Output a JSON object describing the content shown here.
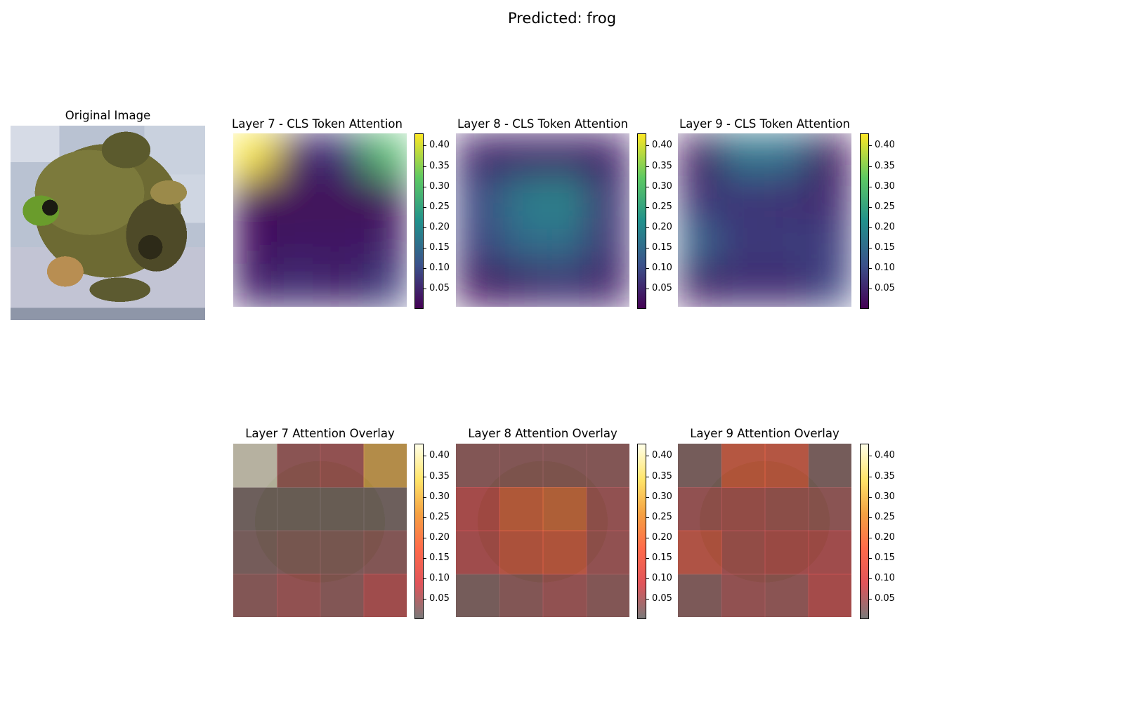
{
  "figure": {
    "suptitle": "Predicted: frog"
  },
  "panels": {
    "original_title": "Original Image",
    "attention_titles": [
      "Layer 7 - CLS Token Attention",
      "Layer 8 - CLS Token Attention",
      "Layer 9 - CLS Token Attention"
    ],
    "overlay_titles": [
      "Layer 7 Attention Overlay",
      "Layer 8 Attention Overlay",
      "Layer 9 Attention Overlay"
    ]
  },
  "colors": {
    "viridis": [
      "#440154",
      "#3b528b",
      "#21918c",
      "#5ec962",
      "#fde725"
    ],
    "hot_overlay": [
      "#7a7a7a",
      "#e0545a",
      "#ff6a4a",
      "#f5a142",
      "#ffe56a",
      "#ffffe8"
    ]
  },
  "chart_data": [
    {
      "type": "heatmap",
      "title": "Layer 7 - CLS Token Attention",
      "grid": "4x4 patches (bicubic upsampled)",
      "values": [
        [
          0.43,
          0.05,
          0.06,
          0.3
        ],
        [
          0.01,
          0.01,
          0.01,
          0.01
        ],
        [
          0.02,
          0.03,
          0.03,
          0.04
        ],
        [
          0.04,
          0.06,
          0.04,
          0.08
        ]
      ],
      "colorbar": {
        "cmap": "viridis",
        "ticks": [
          0.4,
          0.35,
          0.3,
          0.25,
          0.2,
          0.15,
          0.1,
          0.05
        ],
        "range": [
          0.0,
          0.43
        ]
      }
    },
    {
      "type": "heatmap",
      "title": "Layer 8 - CLS Token Attention",
      "grid": "4x4 patches (bicubic upsampled)",
      "values": [
        [
          0.04,
          0.04,
          0.04,
          0.04
        ],
        [
          0.09,
          0.18,
          0.2,
          0.06
        ],
        [
          0.08,
          0.15,
          0.16,
          0.06
        ],
        [
          0.02,
          0.04,
          0.06,
          0.04
        ]
      ],
      "colorbar": {
        "cmap": "viridis",
        "ticks": [
          0.4,
          0.35,
          0.3,
          0.25,
          0.2,
          0.15,
          0.1,
          0.05
        ],
        "range": [
          0.0,
          0.43
        ]
      }
    },
    {
      "type": "heatmap",
      "title": "Layer 9 - CLS Token Attention",
      "grid": "4x4 patches (bicubic upsampled)",
      "values": [
        [
          0.02,
          0.17,
          0.16,
          0.02
        ],
        [
          0.06,
          0.07,
          0.06,
          0.05
        ],
        [
          0.14,
          0.07,
          0.08,
          0.08
        ],
        [
          0.03,
          0.06,
          0.05,
          0.09
        ]
      ],
      "colorbar": {
        "cmap": "viridis",
        "ticks": [
          0.4,
          0.35,
          0.3,
          0.25,
          0.2,
          0.15,
          0.1,
          0.05
        ],
        "range": [
          0.0,
          0.43
        ]
      }
    },
    {
      "type": "heatmap",
      "title": "Layer 7 Attention Overlay",
      "grid": "4x4 patches (nearest, overlaid on image)",
      "values": [
        [
          0.43,
          0.05,
          0.06,
          0.3
        ],
        [
          0.01,
          0.01,
          0.01,
          0.01
        ],
        [
          0.02,
          0.03,
          0.03,
          0.04
        ],
        [
          0.04,
          0.06,
          0.04,
          0.08
        ]
      ],
      "colorbar": {
        "cmap": "hot",
        "ticks": [
          0.4,
          0.35,
          0.3,
          0.25,
          0.2,
          0.15,
          0.1,
          0.05
        ],
        "range": [
          0.0,
          0.43
        ]
      }
    },
    {
      "type": "heatmap",
      "title": "Layer 8 Attention Overlay",
      "grid": "4x4 patches (nearest, overlaid on image)",
      "values": [
        [
          0.04,
          0.04,
          0.04,
          0.04
        ],
        [
          0.09,
          0.18,
          0.2,
          0.06
        ],
        [
          0.08,
          0.15,
          0.16,
          0.06
        ],
        [
          0.02,
          0.04,
          0.06,
          0.04
        ]
      ],
      "colorbar": {
        "cmap": "hot",
        "ticks": [
          0.4,
          0.35,
          0.3,
          0.25,
          0.2,
          0.15,
          0.1,
          0.05
        ],
        "range": [
          0.0,
          0.43
        ]
      }
    },
    {
      "type": "heatmap",
      "title": "Layer 9 Attention Overlay",
      "grid": "4x4 patches (nearest, overlaid on image)",
      "values": [
        [
          0.02,
          0.17,
          0.16,
          0.02
        ],
        [
          0.06,
          0.07,
          0.06,
          0.05
        ],
        [
          0.14,
          0.07,
          0.08,
          0.08
        ],
        [
          0.03,
          0.06,
          0.05,
          0.09
        ]
      ],
      "colorbar": {
        "cmap": "hot",
        "ticks": [
          0.4,
          0.35,
          0.3,
          0.25,
          0.2,
          0.15,
          0.1,
          0.05
        ],
        "range": [
          0.0,
          0.43
        ]
      }
    }
  ]
}
